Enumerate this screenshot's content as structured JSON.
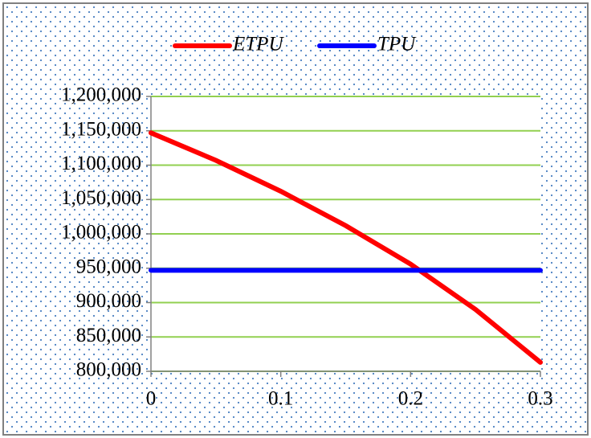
{
  "chart_data": {
    "type": "line",
    "x": [
      0,
      0.05,
      0.1,
      0.15,
      0.2,
      0.25,
      0.3
    ],
    "series": [
      {
        "name": "ETPU",
        "color": "#ff0000",
        "values": [
          1147000,
          1107000,
          1062000,
          1012000,
          956000,
          890000,
          813000
        ]
      },
      {
        "name": "TPU",
        "color": "#0000ff",
        "values": [
          947000,
          947000,
          947000,
          947000,
          947000,
          947000,
          947000
        ]
      }
    ],
    "xlim": [
      0,
      0.3
    ],
    "xticks": [
      0,
      0.1,
      0.2,
      0.3
    ],
    "ylim": [
      800000,
      1200000
    ],
    "yticks": [
      {
        "value": 800000,
        "label": "800,000"
      },
      {
        "value": 850000,
        "label": "850,000"
      },
      {
        "value": 900000,
        "label": "900,000"
      },
      {
        "value": 950000,
        "label": "950,000"
      },
      {
        "value": 1000000,
        "label": "1,000,000"
      },
      {
        "value": 1050000,
        "label": "1,050,000"
      },
      {
        "value": 1100000,
        "label": "1,100,000"
      },
      {
        "value": 1150000,
        "label": "1,150,000"
      },
      {
        "value": 1200000,
        "label": "1,200,000"
      }
    ],
    "grid": true,
    "grid_color": "#92d050",
    "legend": "top"
  }
}
